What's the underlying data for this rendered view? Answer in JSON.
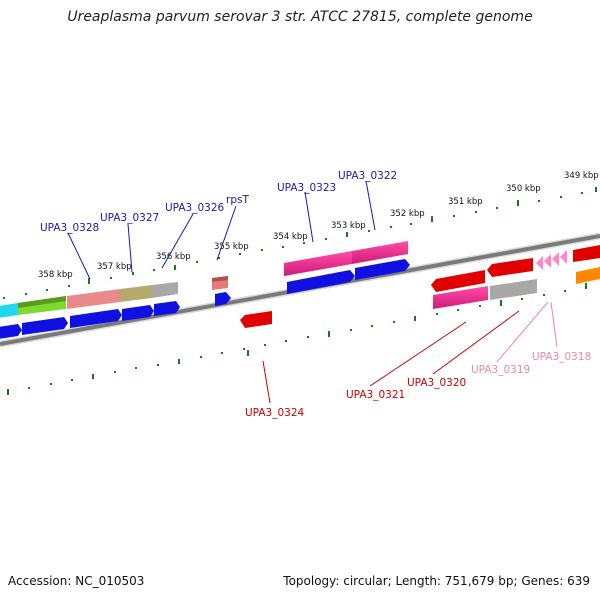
{
  "title": "Ureaplasma parvum serovar 3 str. ATCC 27815, complete genome",
  "accession_text": "Accession: NC_010503",
  "topology_text": "Topology: circular; Length: 751,679 bp; Genes: 639",
  "colors": {
    "backbone": "#808080",
    "tick": "#1a7a1a",
    "label_blue": "#1a1aaa",
    "label_red": "#cc0000",
    "label_pink": "#ee88aa"
  },
  "scale_labels": [
    "358 kbp",
    "357 kbp",
    "356 kbp",
    "355 kbp",
    "354 kbp",
    "353 kbp",
    "352 kbp",
    "351 kbp",
    "350 kbp",
    "349 kbp"
  ],
  "gene_labels": {
    "top": [
      "UPA3_0328",
      "UPA3_0327",
      "UPA3_0326",
      "rpsT",
      "UPA3_0323",
      "UPA3_0322"
    ],
    "bottom": [
      "UPA3_0324",
      "UPA3_0321",
      "UPA3_0320",
      "UPA3_0319",
      "UPA3_0318"
    ]
  }
}
